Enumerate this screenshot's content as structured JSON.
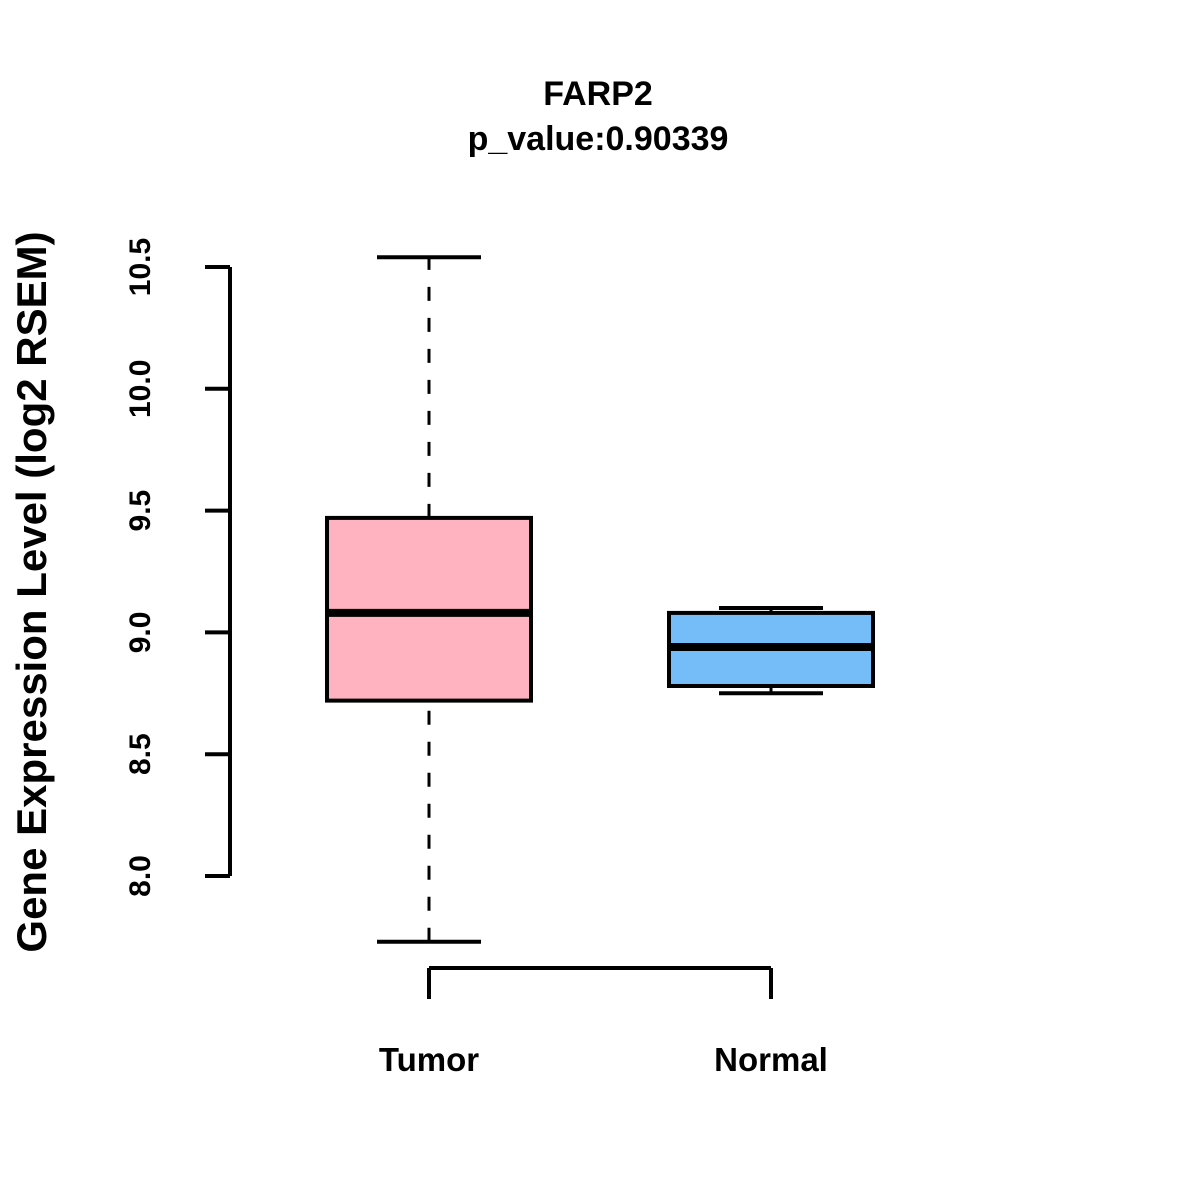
{
  "chart_data": {
    "type": "boxplot",
    "title": "FARP2",
    "subtitle": "p_value:0.90339",
    "ylabel": "Gene Expression Level (log2 RSEM)",
    "xlabel": "",
    "ylim": [
      7.55,
      10.6
    ],
    "yticks": [
      8.0,
      8.5,
      9.0,
      9.5,
      10.0,
      10.5
    ],
    "ytick_labels": [
      "8.0",
      "8.5",
      "9.0",
      "9.5",
      "10.0",
      "10.5"
    ],
    "grid": false,
    "legend": "none",
    "box_border_color": "#000000",
    "whisker_style": "dashed",
    "groups": [
      {
        "label": "Tumor",
        "color": "#FFB3C1",
        "whisker_low": 7.73,
        "q1": 8.72,
        "median": 9.08,
        "q3": 9.47,
        "whisker_high": 10.54
      },
      {
        "label": "Normal",
        "color": "#74BDF8",
        "whisker_low": 8.75,
        "q1": 8.78,
        "median": 8.94,
        "q3": 9.08,
        "whisker_high": 9.1
      }
    ]
  }
}
